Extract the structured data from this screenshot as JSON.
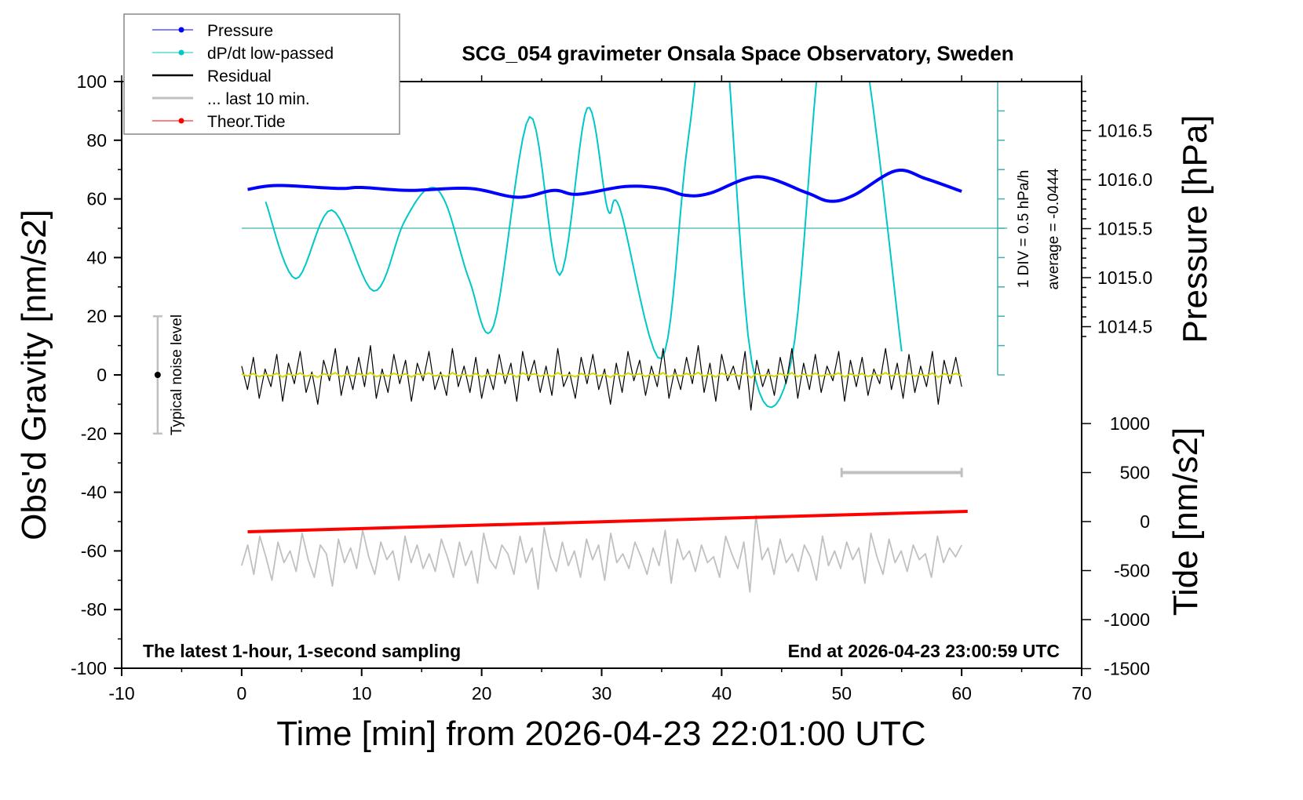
{
  "chart_data": {
    "type": "line",
    "title": "SCG_054 gravimeter Onsala Space Observatory, Sweden",
    "xlabel": "Time [min] from 2026-04-23 22:01:00 UTC",
    "ylabel": "Obs'd Gravity [nm/s2]",
    "y2label": "Pressure [hPa]",
    "y3label": "Tide [nm/s2]",
    "xlim": [
      -10,
      70
    ],
    "ylim": [
      -100,
      100
    ],
    "y2_ticks": [
      "1016.5",
      "1016.0",
      "1015.5",
      "1015.0",
      "1014.5"
    ],
    "y3_ticks": [
      "1000",
      "500",
      "0",
      "-500",
      "-1000",
      "-1500"
    ],
    "x_ticks": [
      "-10",
      "0",
      "10",
      "20",
      "30",
      "40",
      "50",
      "60",
      "70"
    ],
    "y_ticks": [
      "100",
      "80",
      "60",
      "40",
      "20",
      "0",
      "-20",
      "-40",
      "-60",
      "-80",
      "-100"
    ],
    "legend": {
      "placement": "top-left",
      "entries": [
        "Pressure",
        "dP/dt low-passed",
        "Residual",
        "... last 10 min.",
        "Theor.Tide"
      ]
    },
    "annotations": {
      "bottom_left": "The latest 1-hour, 1-second sampling",
      "bottom_right": "End at 2026-04-23 23:00:59 UTC",
      "div": "1 DIV = 0.5 hPa/h",
      "average": "average = -0.0444",
      "noise": "Typical noise level"
    },
    "colors": {
      "pressure": "#0000ff",
      "dpdt": "#00c8c8",
      "residual": "#000000",
      "last10": "#c0c0c0",
      "tide": "#ff0000",
      "lowpass": "#d8d800"
    },
    "noise_level": {
      "x": -7,
      "y": 0,
      "error": 20
    },
    "last10_bar": {
      "x": [
        50,
        60
      ],
      "tide_value": 500
    },
    "series": [
      {
        "name": "Pressure",
        "unit": "hPa",
        "x": [
          0.5,
          3,
          8,
          10,
          14,
          19,
          23,
          26,
          28,
          32,
          35,
          37,
          39,
          43,
          47,
          49,
          51,
          54.5,
          57,
          60
        ],
        "values": [
          1015.9,
          1015.94,
          1015.91,
          1015.92,
          1015.89,
          1015.91,
          1015.82,
          1015.89,
          1015.85,
          1015.93,
          1015.91,
          1015.84,
          1015.86,
          1016.03,
          1015.87,
          1015.78,
          1015.84,
          1016.09,
          1016.01,
          1015.88
        ]
      },
      {
        "name": "dP/dt low-passed",
        "unit": "hPa/h",
        "baseline_left_axis": 50,
        "x": [
          2,
          4.5,
          7.5,
          11,
          13.5,
          15.5,
          17,
          19,
          21,
          24,
          26.5,
          28.8,
          30.5,
          31.5,
          35,
          37.2,
          39.7,
          42.5,
          45.8,
          48.5,
          51.5,
          55
        ],
        "values": [
          0.45,
          -0.86,
          0.31,
          -1.07,
          0.09,
          0.67,
          0.43,
          -0.9,
          -1.66,
          1.9,
          -0.8,
          2.05,
          0.32,
          0.35,
          -2.22,
          1.5,
          4.5,
          -2.27,
          -2.27,
          3.5,
          3.5,
          -2.1
        ]
      },
      {
        "name": "Residual",
        "unit": "nm/s2",
        "x_range": [
          0,
          60
        ],
        "values": [
          3,
          -5,
          6,
          -8,
          2,
          -4,
          7,
          -9,
          4,
          -3,
          8,
          -6,
          1,
          -10,
          5,
          -2,
          9,
          -7,
          3,
          -5,
          6,
          -4,
          10,
          -8,
          2,
          -6,
          7,
          -3,
          5,
          -9,
          4,
          -2,
          8,
          -5,
          1,
          -7,
          9,
          -4,
          3,
          -6,
          6,
          -8,
          2,
          -5,
          7,
          -3,
          4,
          -9,
          8,
          -2,
          5,
          -6,
          3,
          -7,
          9,
          -4,
          1,
          -8,
          6,
          -3,
          7,
          -5,
          2,
          -10,
          4,
          -6,
          8,
          -2,
          5,
          -7,
          3,
          -4,
          9,
          -8,
          2,
          -5,
          6,
          -3,
          10,
          -6,
          4,
          -9,
          7,
          -2,
          3,
          -5,
          8,
          -12,
          5,
          -4,
          2,
          -7,
          6,
          -3,
          9,
          -8,
          4,
          -5,
          7,
          -6,
          3,
          -2,
          8,
          -9,
          5,
          -4,
          6,
          -7,
          2,
          -3,
          9,
          -5,
          4,
          -8,
          7,
          -6,
          3,
          -4,
          8,
          -10,
          5,
          -3,
          6,
          -4
        ]
      },
      {
        "name": "... last 10 min.",
        "unit": "nm/s2",
        "x_range": [
          0,
          60
        ],
        "values": [
          -65,
          -58,
          -68,
          -55,
          -62,
          -70,
          -57,
          -64,
          -60,
          -67,
          -54,
          -63,
          -69,
          -58,
          -61,
          -72,
          -56,
          -64,
          -59,
          -66,
          -53,
          -62,
          -68,
          -57,
          -63,
          -60,
          -70,
          -55,
          -64,
          -58,
          -66,
          -61,
          -67,
          -56,
          -62,
          -69,
          -57,
          -65,
          -60,
          -71,
          -54,
          -63,
          -66,
          -58,
          -61,
          -68,
          -55,
          -64,
          -59,
          -73,
          -52,
          -62,
          -67,
          -57,
          -65,
          -60,
          -69,
          -56,
          -63,
          -58,
          -70,
          -54,
          -64,
          -61,
          -66,
          -57,
          -62,
          -68,
          -59,
          -65,
          -53,
          -71,
          -56,
          -63,
          -60,
          -67,
          -58,
          -64,
          -62,
          -69,
          -55,
          -61,
          -66,
          -57,
          -74,
          -48,
          -63,
          -59,
          -68,
          -56,
          -64,
          -61,
          -67,
          -58,
          -62,
          -70,
          -55,
          -65,
          -60,
          -66,
          -57,
          -63,
          -59,
          -71,
          -54,
          -62,
          -68,
          -56,
          -64,
          -60,
          -67,
          -58,
          -63,
          -61,
          -69,
          -55,
          -64,
          -59,
          -62,
          -58
        ]
      },
      {
        "name": "Theor.Tide",
        "unit": "nm/s2",
        "x": [
          0.5,
          60.5
        ],
        "values": [
          -104,
          104
        ]
      }
    ]
  }
}
